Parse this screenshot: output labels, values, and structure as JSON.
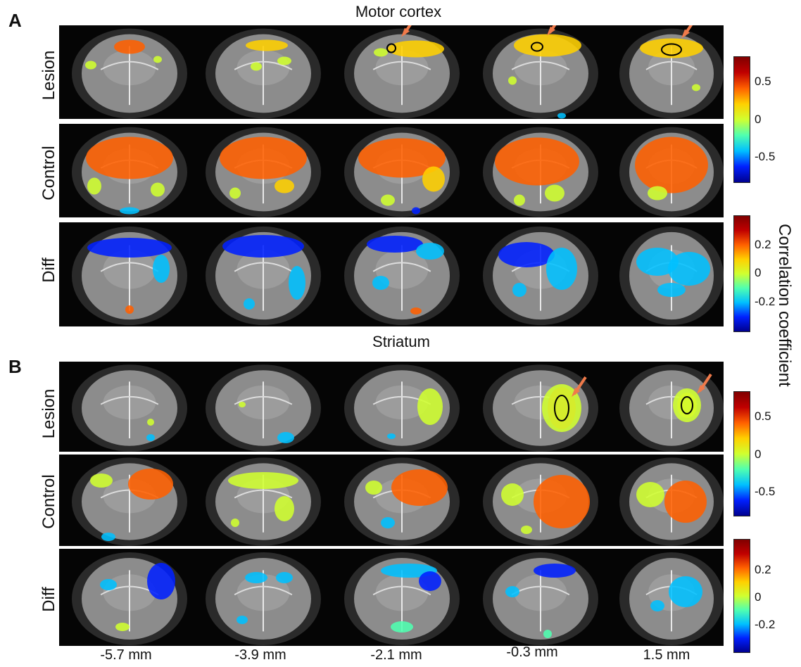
{
  "panels": [
    {
      "letter": "A",
      "title": "Motor cortex",
      "rows": [
        {
          "label": "Lesion",
          "colorbar": "cb1"
        },
        {
          "label": "Control",
          "colorbar": "cb1"
        },
        {
          "label": "Diff",
          "colorbar": "cb2"
        }
      ]
    },
    {
      "letter": "B",
      "title": "Striatum",
      "rows": [
        {
          "label": "Lesion",
          "colorbar": "cb3"
        },
        {
          "label": "Control",
          "colorbar": "cb3"
        },
        {
          "label": "Diff",
          "colorbar": "cb4"
        }
      ]
    }
  ],
  "colorbars": {
    "cb1": {
      "ticks": [
        "0.5",
        "0",
        "-0.5"
      ]
    },
    "cb2": {
      "ticks": [
        "0.2",
        "0",
        "-0.2"
      ]
    },
    "cb3": {
      "ticks": [
        "0.5",
        "0",
        "-0.5"
      ]
    },
    "cb4": {
      "ticks": [
        "0.2",
        "0",
        "-0.2"
      ]
    }
  },
  "colorbar_title": "Correlation coefficient",
  "slice_positions": [
    "-5.7 mm",
    "-3.9 mm",
    "-2.1 mm",
    "-0.3 mm",
    "1.5 mm"
  ],
  "colors": {
    "background": "#050505",
    "brain": "#8c8c8c",
    "arrow": "#f07a4a",
    "jet": [
      "#00008f",
      "#0020ff",
      "#00c0ff",
      "#50ffb0",
      "#d0ff30",
      "#ffd000",
      "#ff6000",
      "#c00000",
      "#800000"
    ]
  }
}
